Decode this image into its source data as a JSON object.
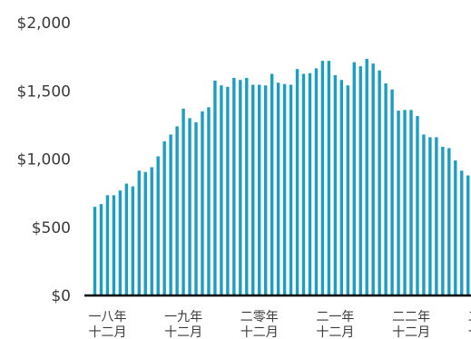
{
  "chart_data": {
    "type": "bar",
    "title": "",
    "xlabel": "",
    "ylabel": "",
    "ylim": [
      0,
      2000
    ],
    "yticks": [
      {
        "value": 0,
        "label": "$0"
      },
      {
        "value": 500,
        "label": "$500"
      },
      {
        "value": 1000,
        "label": "$1,000"
      },
      {
        "value": 1500,
        "label": "$1,500"
      },
      {
        "value": 2000,
        "label": "$2,000"
      }
    ],
    "xtick_labels": [
      {
        "index": 0,
        "line1": "一八年",
        "line2": "十二月"
      },
      {
        "index": 12,
        "line1": "一九年",
        "line2": "十二月"
      },
      {
        "index": 24,
        "line1": "二零年",
        "line2": "十二月"
      },
      {
        "index": 36,
        "line1": "二一年",
        "line2": "十二月"
      },
      {
        "index": 48,
        "line1": "二二年",
        "line2": "十二月"
      },
      {
        "index": 60,
        "line1": "二三年",
        "line2": "十二月"
      }
    ],
    "grid": false,
    "bar_color": "#1a9ec2",
    "axis_color": "#000000",
    "values": [
      650,
      670,
      735,
      735,
      770,
      820,
      800,
      915,
      905,
      940,
      1020,
      1130,
      1180,
      1240,
      1370,
      1300,
      1270,
      1350,
      1380,
      1575,
      1540,
      1530,
      1595,
      1580,
      1595,
      1545,
      1545,
      1540,
      1625,
      1560,
      1550,
      1545,
      1660,
      1625,
      1630,
      1665,
      1720,
      1720,
      1615,
      1580,
      1540,
      1710,
      1680,
      1735,
      1700,
      1650,
      1555,
      1510,
      1355,
      1360,
      1360,
      1315,
      1180,
      1160,
      1160,
      1090,
      1080,
      990,
      915,
      880
    ]
  }
}
